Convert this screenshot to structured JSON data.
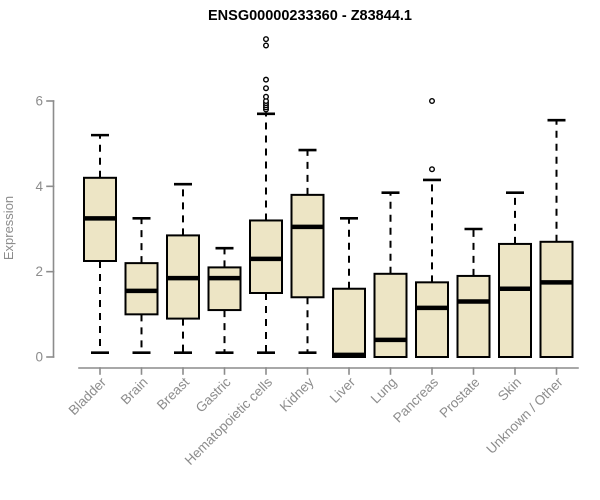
{
  "colors": {
    "box_fill": "#ede5c5",
    "axis_gray": "#8c8c8c",
    "box_stroke": "#000000",
    "title_color": "#000000",
    "background": "#ffffff"
  },
  "chart_data": {
    "type": "boxplot",
    "title": "ENSG00000233360 - Z83844.1",
    "ylabel": "Expression",
    "xlabel": "",
    "ylim": [
      0,
      6
    ],
    "yticks": [
      0,
      2,
      4,
      6
    ],
    "grid": false,
    "legend": "none",
    "categories": [
      "Bladder",
      "Brain",
      "Breast",
      "Gastric",
      "Hematopoietic cells",
      "Kidney",
      "Liver",
      "Lung",
      "Pancreas",
      "Prostate",
      "Skin",
      "Unknown / Other"
    ],
    "series": [
      {
        "name": "Bladder",
        "low": 0.1,
        "q1": 2.25,
        "median": 3.25,
        "q3": 4.2,
        "high": 5.2,
        "outliers": []
      },
      {
        "name": "Brain",
        "low": 0.1,
        "q1": 1.0,
        "median": 1.55,
        "q3": 2.2,
        "high": 3.25,
        "outliers": []
      },
      {
        "name": "Breast",
        "low": 0.1,
        "q1": 0.9,
        "median": 1.85,
        "q3": 2.85,
        "high": 4.05,
        "outliers": []
      },
      {
        "name": "Gastric",
        "low": 0.1,
        "q1": 1.1,
        "median": 1.85,
        "q3": 2.1,
        "high": 2.55,
        "outliers": []
      },
      {
        "name": "Hematopoietic cells",
        "low": 0.1,
        "q1": 1.5,
        "median": 2.3,
        "q3": 3.2,
        "high": 5.7,
        "outliers": [
          5.8,
          5.85,
          5.9,
          5.95,
          6.0,
          6.1,
          6.3,
          6.5,
          7.3,
          7.45
        ]
      },
      {
        "name": "Kidney",
        "low": 0.1,
        "q1": 1.4,
        "median": 3.05,
        "q3": 3.8,
        "high": 4.85,
        "outliers": []
      },
      {
        "name": "Liver",
        "low": 0,
        "q1": 0,
        "median": 0.05,
        "q3": 1.6,
        "high": 3.25,
        "outliers": []
      },
      {
        "name": "Lung",
        "low": 0,
        "q1": 0,
        "median": 0.4,
        "q3": 1.95,
        "high": 3.85,
        "outliers": []
      },
      {
        "name": "Pancreas",
        "low": 0,
        "q1": 0,
        "median": 1.15,
        "q3": 1.75,
        "high": 4.15,
        "outliers": [
          4.4,
          6.0
        ]
      },
      {
        "name": "Prostate",
        "low": 0,
        "q1": 0,
        "median": 1.3,
        "q3": 1.9,
        "high": 3.0,
        "outliers": []
      },
      {
        "name": "Skin",
        "low": 0,
        "q1": 0,
        "median": 1.6,
        "q3": 2.65,
        "high": 3.85,
        "outliers": []
      },
      {
        "name": "Unknown / Other",
        "low": 0,
        "q1": 0,
        "median": 1.75,
        "q3": 2.7,
        "high": 5.55,
        "outliers": []
      }
    ]
  }
}
